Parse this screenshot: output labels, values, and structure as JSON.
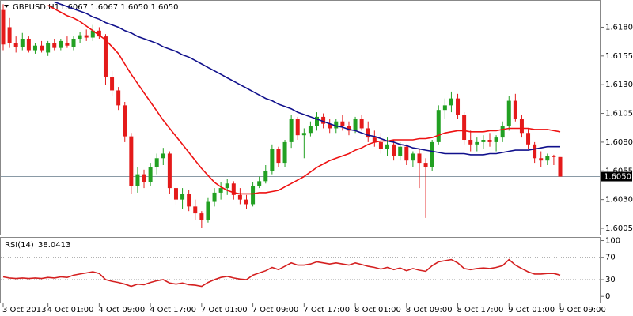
{
  "chart_data": [
    {
      "type": "candlestick",
      "title": "GBPUSD,H1",
      "subtitle": "1.6067 1.6067 1.6050 1.6050",
      "up_color": "#22a022",
      "down_color": "#e41a1a",
      "categories": [
        "3 Oct 2013",
        null,
        null,
        null,
        null,
        null,
        null,
        "4 Oct 01:00",
        null,
        null,
        null,
        null,
        null,
        null,
        null,
        "4 Oct 09:00",
        null,
        null,
        null,
        null,
        null,
        null,
        null,
        "4 Oct 17:00",
        null,
        null,
        null,
        null,
        null,
        null,
        null,
        "7 Oct 01:00",
        null,
        null,
        null,
        null,
        null,
        null,
        null,
        "7 Oct 09:00",
        null,
        null,
        null,
        null,
        null,
        null,
        null,
        "7 Oct 17:00",
        null,
        null,
        null,
        null,
        null,
        null,
        null,
        "8 Oct 01:00",
        null,
        null,
        null,
        null,
        null,
        null,
        null,
        "8 Oct 09:00",
        null,
        null,
        null,
        null,
        null,
        null,
        null,
        "8 Oct 17:00",
        null,
        null,
        null,
        null,
        null,
        null,
        null,
        "9 Oct 01:00",
        null,
        null,
        null,
        null,
        null,
        null,
        null,
        "9 Oct 09:00"
      ],
      "open": [
        1.6195,
        1.618,
        1.6166,
        1.6163,
        1.617,
        1.616,
        1.6164,
        1.6158,
        1.6166,
        1.6162,
        1.6166,
        1.6163,
        1.617,
        1.6173,
        1.6171,
        1.6177,
        1.6172,
        1.6137,
        1.6125,
        1.6112,
        1.6085,
        1.6042,
        1.6052,
        1.6045,
        1.6058,
        1.6066,
        1.607,
        1.604,
        1.603,
        1.6035,
        1.6024,
        1.6018,
        1.6012,
        1.6028,
        1.6036,
        1.604,
        1.6044,
        1.6034,
        1.603,
        1.6026,
        1.6042,
        1.6046,
        1.6055,
        1.6074,
        1.6062,
        1.608,
        1.61,
        1.6086,
        1.6088,
        1.6094,
        1.6102,
        1.6096,
        1.6092,
        1.6098,
        1.6094,
        1.609,
        1.61,
        1.6092,
        1.6084,
        1.608,
        1.6074,
        1.6078,
        1.6068,
        1.6076,
        1.6064,
        1.607,
        1.6062,
        1.6058,
        1.608,
        1.6108,
        1.6112,
        1.6118,
        1.6104,
        1.6082,
        1.6078,
        1.608,
        1.6082,
        1.608,
        1.6084,
        1.6094,
        1.6116,
        1.61,
        1.6088,
        1.6078,
        1.6066,
        1.6064,
        1.6068,
        1.6067
      ],
      "high": [
        1.62,
        1.6188,
        1.6172,
        1.6175,
        1.6172,
        1.6166,
        1.6168,
        1.6168,
        1.617,
        1.617,
        1.6172,
        1.6172,
        1.6176,
        1.6178,
        1.6182,
        1.618,
        1.6174,
        1.6142,
        1.6128,
        1.6115,
        1.6088,
        1.6058,
        1.6056,
        1.6062,
        1.607,
        1.6075,
        1.6072,
        1.6044,
        1.604,
        1.6038,
        1.603,
        1.602,
        1.6032,
        1.604,
        1.6045,
        1.6048,
        1.6046,
        1.604,
        1.6034,
        1.6045,
        1.605,
        1.606,
        1.6078,
        1.6076,
        1.6082,
        1.6104,
        1.6102,
        1.6092,
        1.6098,
        1.6106,
        1.6105,
        1.61,
        1.61,
        1.6104,
        1.6098,
        1.6102,
        1.6104,
        1.6098,
        1.609,
        1.6088,
        1.6084,
        1.6082,
        1.608,
        1.6078,
        1.6072,
        1.6074,
        1.6066,
        1.6082,
        1.6112,
        1.6118,
        1.6124,
        1.6122,
        1.6106,
        1.609,
        1.6084,
        1.6086,
        1.6088,
        1.6086,
        1.6098,
        1.612,
        1.6122,
        1.6104,
        1.6092,
        1.608,
        1.6072,
        1.607,
        1.6069,
        1.6067
      ],
      "low": [
        1.616,
        1.6162,
        1.6158,
        1.616,
        1.6158,
        1.6157,
        1.6158,
        1.6155,
        1.616,
        1.616,
        1.6162,
        1.616,
        1.6166,
        1.6168,
        1.6168,
        1.617,
        1.613,
        1.612,
        1.6108,
        1.608,
        1.6035,
        1.6036,
        1.604,
        1.6042,
        1.6052,
        1.606,
        1.6035,
        1.6025,
        1.6022,
        1.602,
        1.6012,
        1.6005,
        1.601,
        1.6024,
        1.603,
        1.6034,
        1.603,
        1.6026,
        1.6022,
        1.6024,
        1.604,
        1.6044,
        1.6052,
        1.6058,
        1.6058,
        1.6075,
        1.6082,
        1.6066,
        1.6085,
        1.609,
        1.6092,
        1.6088,
        1.6088,
        1.609,
        1.6086,
        1.6088,
        1.609,
        1.608,
        1.6076,
        1.607,
        1.6068,
        1.6064,
        1.6064,
        1.606,
        1.6058,
        1.604,
        1.6014,
        1.6055,
        1.6078,
        1.61,
        1.6106,
        1.61,
        1.6078,
        1.6072,
        1.6072,
        1.6074,
        1.6076,
        1.6072,
        1.608,
        1.609,
        1.6098,
        1.6084,
        1.6074,
        1.6062,
        1.6058,
        1.606,
        1.606,
        1.605
      ],
      "close": [
        1.6165,
        1.6166,
        1.6163,
        1.617,
        1.616,
        1.6164,
        1.616,
        1.6166,
        1.6162,
        1.6168,
        1.6164,
        1.617,
        1.6173,
        1.6171,
        1.6177,
        1.6172,
        1.6137,
        1.6125,
        1.6112,
        1.6085,
        1.6042,
        1.6052,
        1.6045,
        1.6058,
        1.6066,
        1.607,
        1.604,
        1.603,
        1.6035,
        1.6024,
        1.6018,
        1.6012,
        1.6028,
        1.6036,
        1.604,
        1.6044,
        1.6034,
        1.603,
        1.6026,
        1.6042,
        1.6046,
        1.6055,
        1.6074,
        1.6062,
        1.608,
        1.61,
        1.6086,
        1.6088,
        1.6094,
        1.6102,
        1.6096,
        1.6092,
        1.6098,
        1.6094,
        1.609,
        1.61,
        1.6092,
        1.6084,
        1.608,
        1.6074,
        1.6078,
        1.6068,
        1.6076,
        1.6064,
        1.607,
        1.6062,
        1.6058,
        1.608,
        1.6108,
        1.6112,
        1.6118,
        1.6104,
        1.6082,
        1.6078,
        1.608,
        1.6082,
        1.608,
        1.6084,
        1.6094,
        1.6116,
        1.61,
        1.6088,
        1.6078,
        1.6066,
        1.6064,
        1.6068,
        1.6067,
        1.605
      ],
      "series": [
        {
          "color": "#ee1111",
          "values": [
            null,
            null,
            null,
            null,
            null,
            null,
            null,
            1.6199,
            1.6196,
            1.6193,
            1.619,
            1.6188,
            1.6185,
            1.6181,
            1.6177,
            1.6173,
            1.6169,
            1.6163,
            1.6157,
            1.6148,
            1.6139,
            1.6131,
            1.6123,
            1.6115,
            1.6107,
            1.6099,
            1.6092,
            1.6085,
            1.6078,
            1.6071,
            1.6064,
            1.6057,
            1.6051,
            1.6045,
            1.6041,
            1.6038,
            1.6036,
            1.6035,
            1.6035,
            1.6035,
            1.6036,
            1.6036,
            1.6037,
            1.6038,
            1.6041,
            1.6044,
            1.6047,
            1.605,
            1.6054,
            1.6058,
            1.6061,
            1.6064,
            1.6066,
            1.6068,
            1.607,
            1.6073,
            1.6075,
            1.6078,
            1.608,
            1.6081,
            1.6081,
            1.6082,
            1.6082,
            1.6082,
            1.6082,
            1.6083,
            1.6083,
            1.6084,
            1.6086,
            1.6088,
            1.6089,
            1.609,
            1.609,
            1.6089,
            1.6089,
            1.6089,
            1.609,
            1.609,
            1.6091,
            1.6092,
            1.6092,
            1.6092,
            1.6092,
            1.6091,
            1.6091,
            1.6091,
            1.609,
            1.6089
          ]
        },
        {
          "color": "#10108c",
          "values": [
            null,
            null,
            null,
            null,
            null,
            null,
            null,
            null,
            1.6202,
            1.62,
            1.6198,
            1.6196,
            1.6194,
            1.6192,
            1.6189,
            1.6187,
            1.6184,
            1.6182,
            1.618,
            1.6177,
            1.6175,
            1.6172,
            1.617,
            1.6168,
            1.6166,
            1.6163,
            1.6161,
            1.6159,
            1.6156,
            1.6154,
            1.6151,
            1.6148,
            1.6145,
            1.6142,
            1.6139,
            1.6136,
            1.6133,
            1.613,
            1.6127,
            1.6124,
            1.6121,
            1.6118,
            1.6116,
            1.6113,
            1.6111,
            1.6109,
            1.6106,
            1.6104,
            1.6102,
            1.61,
            1.6098,
            1.6096,
            1.6094,
            1.6093,
            1.6091,
            1.609,
            1.6088,
            1.6086,
            1.6085,
            1.6083,
            1.6081,
            1.608,
            1.6078,
            1.6077,
            1.6075,
            1.6074,
            1.6073,
            1.6072,
            1.6071,
            1.607,
            1.607,
            1.607,
            1.607,
            1.6069,
            1.6069,
            1.6069,
            1.607,
            1.607,
            1.6071,
            1.6072,
            1.6073,
            1.6073,
            1.6073,
            1.6074,
            1.6075,
            1.6076,
            1.6076,
            1.6076
          ]
        }
      ],
      "last_price": {
        "value": 1.605,
        "label": "1.6050"
      },
      "ylim": [
        1.59995,
        1.6203
      ],
      "yticks": [
        {
          "value": 1.618,
          "label": "1.6180"
        },
        1.6155,
        {
          "value": 1.613,
          "label": "1.6130"
        },
        1.6105,
        {
          "value": 1.608,
          "label": "1.6080"
        },
        1.6055,
        {
          "value": 1.603,
          "label": "1.6030"
        },
        1.6005
      ]
    },
    {
      "type": "line",
      "title": "RSI(14)",
      "series": [
        {
          "color": "#d42020",
          "values": [
            35,
            33,
            32,
            33,
            32,
            33,
            32,
            34,
            33,
            35,
            34,
            38,
            40,
            42,
            44,
            41,
            30,
            27,
            25,
            22,
            18,
            22,
            21,
            25,
            28,
            30,
            24,
            22,
            24,
            21,
            20,
            18,
            25,
            30,
            34,
            36,
            33,
            31,
            30,
            38,
            42,
            46,
            52,
            48,
            54,
            60,
            56,
            56,
            58,
            62,
            60,
            58,
            60,
            58,
            56,
            60,
            57,
            54,
            52,
            49,
            52,
            48,
            51,
            46,
            50,
            47,
            45,
            55,
            62,
            64,
            66,
            60,
            50,
            48,
            50,
            51,
            50,
            52,
            55,
            66,
            56,
            50,
            44,
            40,
            40,
            41,
            41,
            38.0413
          ]
        }
      ],
      "ylim": [
        -11,
        105
      ],
      "yticks": [
        100,
        70,
        30,
        0
      ],
      "levels": [
        70,
        30
      ]
    }
  ]
}
